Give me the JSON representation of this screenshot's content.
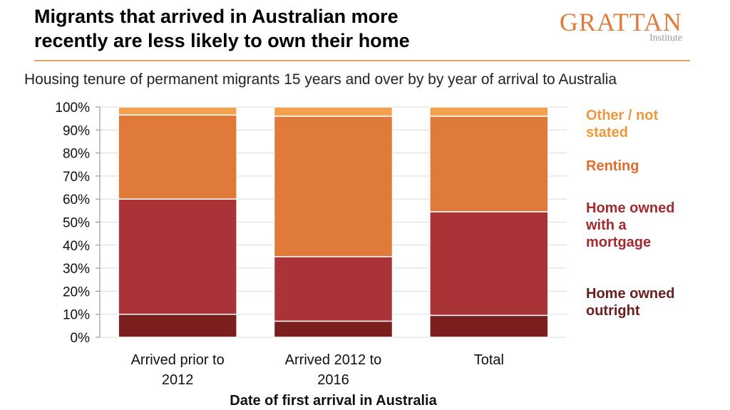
{
  "header": {
    "title_line1": "Migrants that arrived in Australian more",
    "title_line2": "recently are less likely to own their home",
    "logo_main": "GRATTAN",
    "logo_sub": "Institute",
    "subtitle": "Housing tenure of permanent migrants 15 years and over by by year of arrival to Australia"
  },
  "colors": {
    "home_owned_outright": "#7a1e1e",
    "home_owned_mortgage": "#a93336",
    "renting": "#e07a3b",
    "other_not_stated": "#f2a24f",
    "gridline": "#d9d9d9",
    "legend_outright": "#6b1d1d",
    "legend_mortgage": "#a32a2f",
    "legend_renting": "#e06c2c",
    "legend_other": "#f0973c"
  },
  "chart_data": {
    "type": "bar",
    "stacked": true,
    "categories": [
      [
        "Arrived prior to",
        "2012"
      ],
      [
        "Arrived 2012 to",
        "2016"
      ],
      [
        "Total"
      ]
    ],
    "series": [
      {
        "name": "Home owned outright",
        "legend_lines": [
          "Home owned",
          "outright"
        ],
        "color_key": "home_owned_outright",
        "values": [
          10,
          7,
          9.5
        ]
      },
      {
        "name": "Home owned with a mortgage",
        "legend_lines": [
          "Home owned",
          "with a",
          "mortgage"
        ],
        "color_key": "home_owned_mortgage",
        "values": [
          50,
          28,
          45
        ]
      },
      {
        "name": "Renting",
        "legend_lines": [
          "Renting"
        ],
        "color_key": "renting",
        "values": [
          36.5,
          61,
          41.5
        ]
      },
      {
        "name": "Other / not stated",
        "legend_lines": [
          "Other / not",
          "stated"
        ],
        "color_key": "other_not_stated",
        "values": [
          3.5,
          4,
          4
        ]
      }
    ],
    "xlabel": "Date of first arrival in Australia",
    "ylabel": "",
    "ylim": [
      0,
      100
    ],
    "yticks": [
      "0%",
      "10%",
      "20%",
      "30%",
      "40%",
      "50%",
      "60%",
      "70%",
      "80%",
      "90%",
      "100%"
    ],
    "grid": true,
    "legend_placement": "right"
  }
}
